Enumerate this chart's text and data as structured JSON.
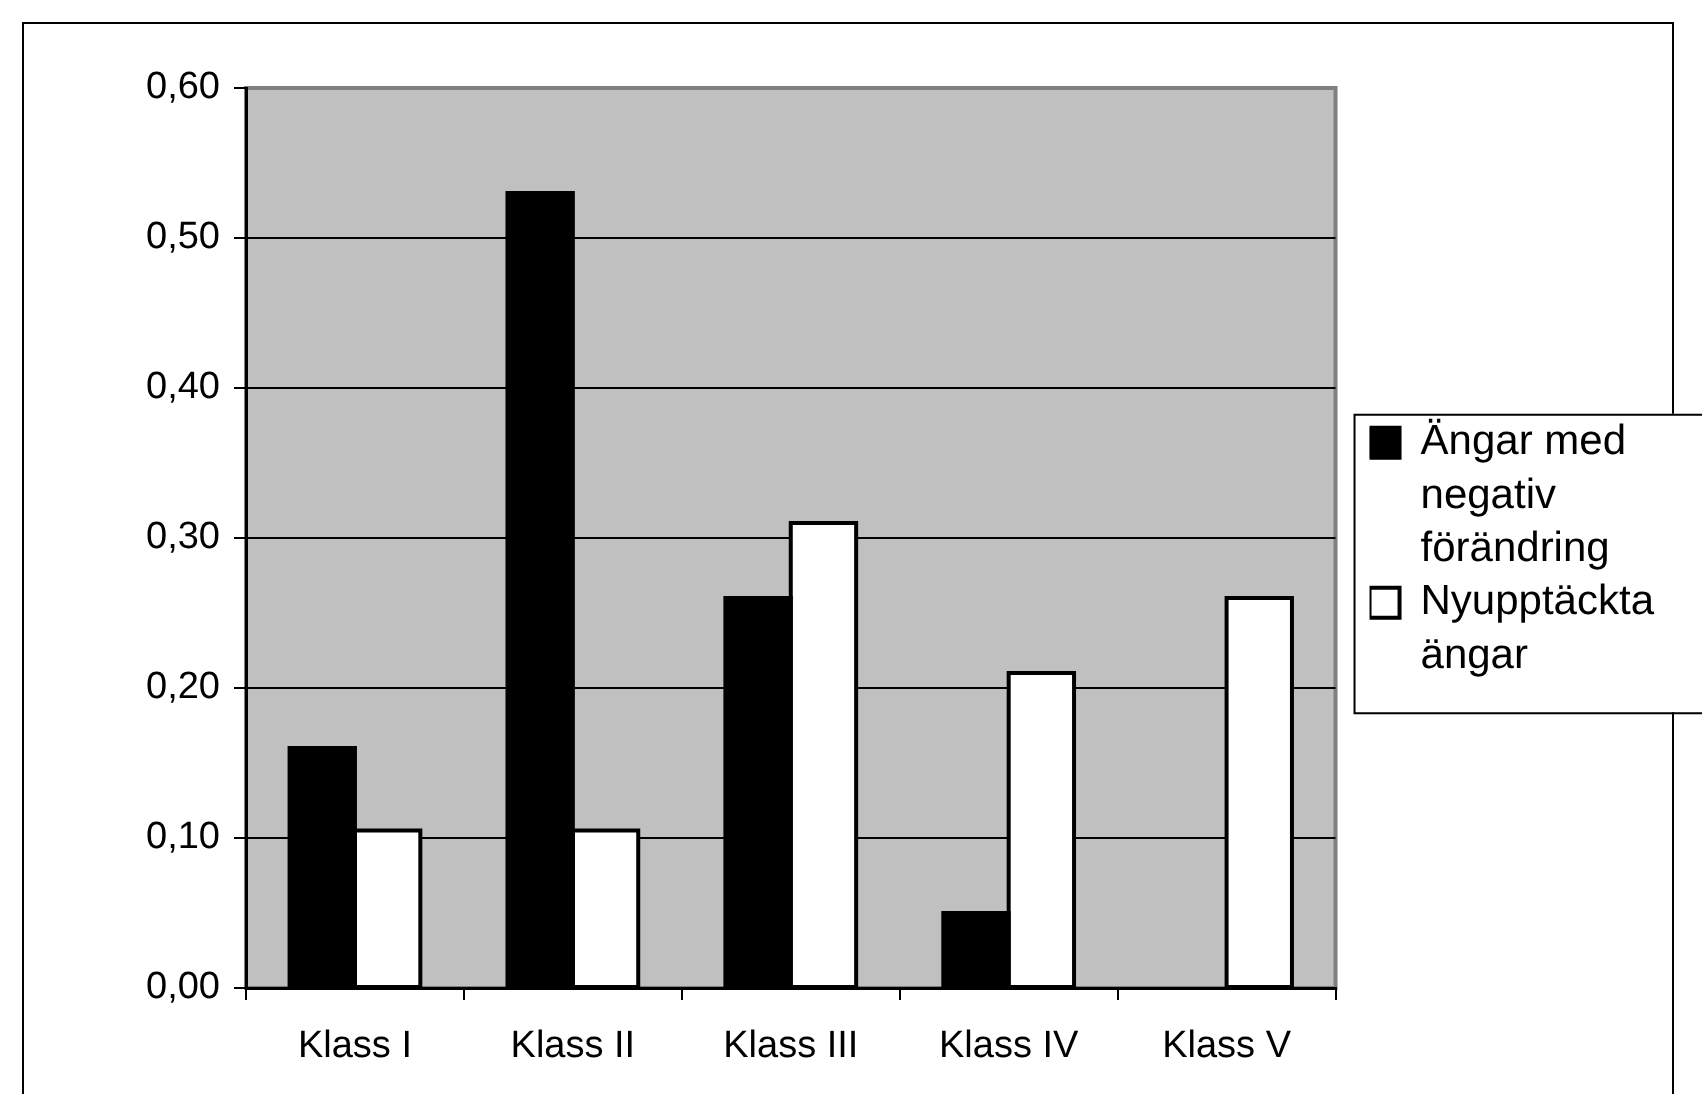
{
  "chart_data": {
    "type": "bar",
    "categories": [
      "Klass I",
      "Klass II",
      "Klass III",
      "Klass IV",
      "Klass V"
    ],
    "series": [
      {
        "name": "Ängar med negativ förändring",
        "color": "#000000",
        "values": [
          0.16,
          0.53,
          0.26,
          0.05,
          null
        ]
      },
      {
        "name": "Nyupptäckta ängar",
        "color": "#ffffff",
        "values": [
          0.105,
          0.105,
          0.31,
          0.21,
          0.26
        ]
      }
    ],
    "ylim": [
      0,
      0.6
    ],
    "yticks": [
      {
        "value": 0,
        "label": "0,00"
      },
      {
        "value": 0.1,
        "label": "0,10"
      },
      {
        "value": 0.2,
        "label": "0,20"
      },
      {
        "value": 0.3,
        "label": "0,30"
      },
      {
        "value": 0.4,
        "label": "0,40"
      },
      {
        "value": 0.5,
        "label": "0,50"
      },
      {
        "value": 0.6,
        "label": "0,60"
      }
    ],
    "grid": "y",
    "legend": "right"
  }
}
